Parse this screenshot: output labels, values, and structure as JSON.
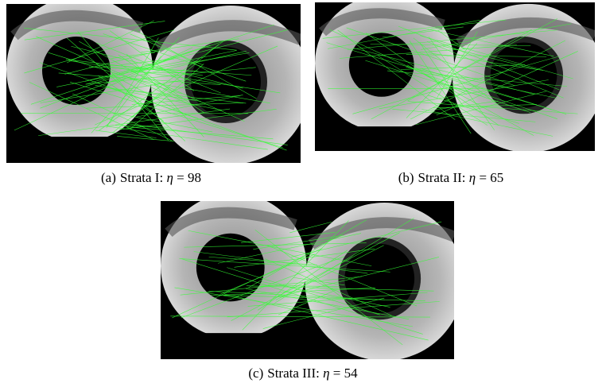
{
  "panels": [
    {
      "label": "(a)",
      "text": "Strata I:",
      "symbol": "η",
      "value": "= 98"
    },
    {
      "label": "(b)",
      "text": "Strata II:",
      "symbol": "η",
      "value": "= 65"
    },
    {
      "label": "(c)",
      "text": "Strata III:",
      "symbol": "η",
      "value": "= 54"
    }
  ]
}
